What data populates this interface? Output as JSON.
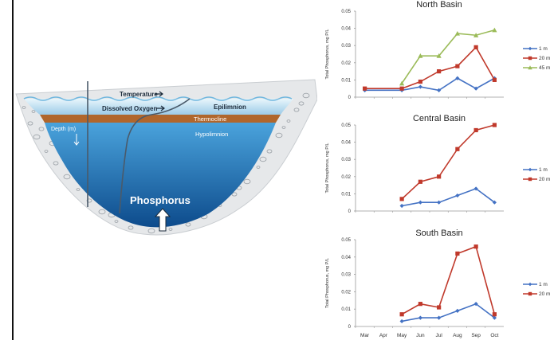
{
  "diagram": {
    "temperature_label": "Temperature",
    "oxygen_label": "Dissolved Oxygen",
    "epilimnion_label": "Epilimnion",
    "thermocline_label": "Thermocline",
    "hypolimnion_label": "Hypolimnion",
    "depth_label": "Depth (m)",
    "phosphorus_label": "Phosphorus",
    "colors": {
      "water_top": "#4aa3dc",
      "water_bottom": "#0d4b8c",
      "thermocline": "#b0662c",
      "surface": "#dff0f8"
    }
  },
  "chart_data": [
    {
      "type": "line",
      "title": "North Basin",
      "ylabel": "Total Phosphorus, mg P/L",
      "ylim": [
        0,
        0.05
      ],
      "yticks": [
        "0",
        "0.01",
        "0.02",
        "0.03",
        "0.04",
        "0.05"
      ],
      "categories": [
        "Mar",
        "Apr",
        "May",
        "Jun",
        "Jul",
        "Aug",
        "Sep",
        "Oct"
      ],
      "show_x_tick_labels": false,
      "legend": "right",
      "series": [
        {
          "name": "1 m",
          "color": "#4472c4",
          "marker": "diamond",
          "values": [
            0.004,
            null,
            0.004,
            0.006,
            0.004,
            0.011,
            0.005,
            0.011
          ]
        },
        {
          "name": "20 m",
          "color": "#c0392b",
          "marker": "square",
          "values": [
            0.005,
            null,
            0.005,
            0.009,
            0.015,
            0.018,
            0.029,
            0.01
          ]
        },
        {
          "name": "45 m",
          "color": "#9bbb59",
          "marker": "triangle",
          "values": [
            null,
            null,
            0.008,
            0.024,
            0.024,
            0.037,
            0.036,
            0.039
          ]
        }
      ]
    },
    {
      "type": "line",
      "title": "Central Basin",
      "ylabel": "Total Phosphorus, mg P/L",
      "ylim": [
        0,
        0.05
      ],
      "yticks": [
        "0",
        "0.01",
        "0.02",
        "0.03",
        "0.04",
        "0.05"
      ],
      "categories": [
        "Mar",
        "Apr",
        "May",
        "Jun",
        "Jul",
        "Aug",
        "Sep",
        "Oct"
      ],
      "show_x_tick_labels": false,
      "legend": "right",
      "series": [
        {
          "name": "1 m",
          "color": "#4472c4",
          "marker": "diamond",
          "values": [
            null,
            null,
            0.003,
            0.005,
            0.005,
            0.009,
            0.013,
            0.005
          ]
        },
        {
          "name": "20 m",
          "color": "#c0392b",
          "marker": "square",
          "values": [
            null,
            null,
            0.007,
            0.017,
            0.02,
            0.036,
            0.047,
            0.05
          ]
        }
      ]
    },
    {
      "type": "line",
      "title": "South Basin",
      "ylabel": "Total Phosphorus, mg P/L",
      "ylim": [
        0,
        0.05
      ],
      "yticks": [
        "0",
        "0.01",
        "0.02",
        "0.03",
        "0.04",
        "0.05"
      ],
      "categories": [
        "Mar",
        "Apr",
        "May",
        "Jun",
        "Jul",
        "Aug",
        "Sep",
        "Oct"
      ],
      "show_x_tick_labels": true,
      "legend": "right",
      "series": [
        {
          "name": "1 m",
          "color": "#4472c4",
          "marker": "diamond",
          "values": [
            null,
            null,
            0.003,
            0.005,
            0.005,
            0.009,
            0.013,
            0.005
          ]
        },
        {
          "name": "20 m",
          "color": "#c0392b",
          "marker": "square",
          "values": [
            null,
            null,
            0.007,
            0.013,
            0.011,
            0.042,
            0.046,
            0.007
          ]
        }
      ]
    }
  ]
}
